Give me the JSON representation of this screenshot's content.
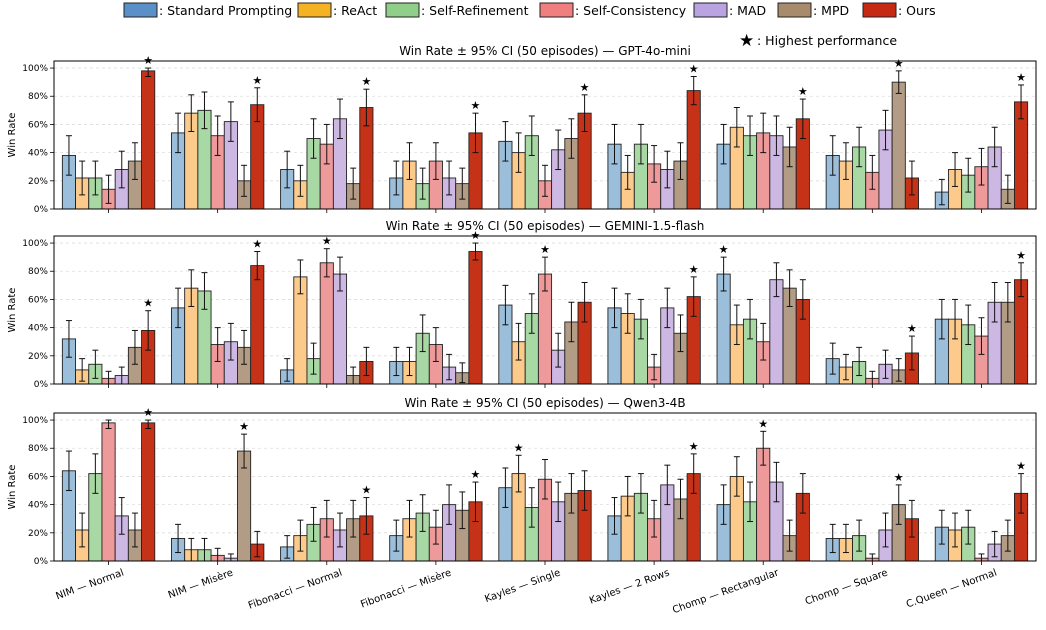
{
  "legend": {
    "series_labels": [
      ": Standard Prompting",
      ": ReAct",
      ": Self-Refinement",
      ": Self-Consistency",
      ": MAD",
      ": MPD",
      ": Ours"
    ],
    "highest_label": ": Highest performance",
    "highest_symbol": "★"
  },
  "colors": {
    "series_fill": [
      "#9bbedb",
      "#fccb8c",
      "#a8d8a3",
      "#ef9a9a",
      "#cdb8e4",
      "#b29c85",
      "#c63218"
    ],
    "series_swatch": [
      "#5b8fc7",
      "#f5b323",
      "#8fcf8a",
      "#f08080",
      "#b9a3e0",
      "#a88b6d",
      "#c62a12"
    ],
    "grid": "#dddddd"
  },
  "shared": {
    "ylabel": "Win Rate",
    "yticks": [
      "0%",
      "20%",
      "40%",
      "60%",
      "80%",
      "100%"
    ],
    "ylim": [
      0,
      105
    ]
  },
  "chart_data": [
    {
      "type": "bar",
      "title": "Win Rate ± 95% CI (50 episodes) — GPT-4o-mini",
      "ylabel": "Win Rate",
      "categories": [
        "NIM — Normal",
        "NIM — Misère",
        "Fibonacci — Normal",
        "Fibonacci — Misère",
        "Kayles — Single",
        "Kayles — 2 Rows",
        "Chomp — Rectangular",
        "Chomp — Square",
        "C.Queen — Normal"
      ],
      "series": [
        {
          "name": "Standard Prompting",
          "values": [
            38,
            54,
            28,
            22,
            48,
            46,
            46,
            38,
            12
          ],
          "err": [
            14,
            14,
            13,
            12,
            14,
            14,
            14,
            14,
            9
          ]
        },
        {
          "name": "ReAct",
          "values": [
            22,
            68,
            20,
            34,
            40,
            26,
            58,
            34,
            28
          ],
          "err": [
            12,
            13,
            11,
            13,
            14,
            12,
            14,
            13,
            12
          ]
        },
        {
          "name": "Self-Refinement",
          "values": [
            22,
            70,
            50,
            18,
            52,
            46,
            52,
            44,
            24
          ],
          "err": [
            12,
            13,
            14,
            11,
            14,
            14,
            14,
            14,
            12
          ]
        },
        {
          "name": "Self-Consistency",
          "values": [
            14,
            52,
            46,
            34,
            20,
            32,
            54,
            26,
            30
          ],
          "err": [
            10,
            14,
            14,
            13,
            11,
            13,
            14,
            12,
            13
          ]
        },
        {
          "name": "MAD",
          "values": [
            28,
            62,
            64,
            22,
            42,
            28,
            52,
            56,
            44
          ],
          "err": [
            13,
            14,
            14,
            12,
            14,
            13,
            14,
            14,
            14
          ]
        },
        {
          "name": "MPD",
          "values": [
            34,
            20,
            18,
            18,
            50,
            34,
            44,
            90,
            14
          ],
          "err": [
            13,
            11,
            11,
            11,
            14,
            13,
            14,
            8,
            10
          ]
        },
        {
          "name": "Ours",
          "values": [
            98,
            74,
            72,
            54,
            68,
            84,
            64,
            22,
            76
          ],
          "err": [
            4,
            12,
            13,
            14,
            13,
            10,
            14,
            12,
            12
          ]
        }
      ],
      "highest": [
        6,
        6,
        6,
        6,
        6,
        6,
        6,
        5,
        6
      ]
    },
    {
      "type": "bar",
      "title": "Win Rate ± 95% CI (50 episodes) — GEMINI-1.5-flash",
      "ylabel": "Win Rate",
      "categories": [
        "NIM — Normal",
        "NIM — Misère",
        "Fibonacci — Normal",
        "Fibonacci — Misère",
        "Kayles — Single",
        "Kayles — 2 Rows",
        "Chomp — Rectangular",
        "Chomp — Square",
        "C.Queen — Normal"
      ],
      "series": [
        {
          "name": "Standard Prompting",
          "values": [
            32,
            54,
            10,
            16,
            56,
            54,
            78,
            18,
            46
          ],
          "err": [
            13,
            14,
            8,
            10,
            14,
            14,
            12,
            11,
            14
          ]
        },
        {
          "name": "ReAct",
          "values": [
            10,
            68,
            76,
            16,
            30,
            50,
            42,
            12,
            46
          ],
          "err": [
            8,
            13,
            12,
            10,
            13,
            14,
            14,
            9,
            14
          ]
        },
        {
          "name": "Self-Refinement",
          "values": [
            14,
            66,
            18,
            36,
            50,
            46,
            46,
            16,
            42
          ],
          "err": [
            10,
            13,
            11,
            13,
            14,
            14,
            14,
            10,
            14
          ]
        },
        {
          "name": "Self-Consistency",
          "values": [
            4,
            28,
            86,
            28,
            78,
            12,
            30,
            4,
            34
          ],
          "err": [
            5,
            12,
            10,
            12,
            12,
            9,
            13,
            5,
            13
          ]
        },
        {
          "name": "MAD",
          "values": [
            6,
            30,
            78,
            12,
            24,
            54,
            74,
            14,
            58
          ],
          "err": [
            6,
            13,
            12,
            9,
            12,
            14,
            12,
            10,
            14
          ]
        },
        {
          "name": "MPD",
          "values": [
            26,
            26,
            6,
            8,
            44,
            36,
            68,
            10,
            58
          ],
          "err": [
            12,
            12,
            6,
            7,
            14,
            13,
            13,
            8,
            14
          ]
        },
        {
          "name": "Ours",
          "values": [
            38,
            84,
            16,
            94,
            58,
            62,
            60,
            22,
            74
          ],
          "err": [
            14,
            10,
            10,
            6,
            14,
            14,
            14,
            12,
            12
          ]
        }
      ],
      "highest": [
        6,
        6,
        3,
        6,
        3,
        6,
        0,
        6,
        6
      ]
    },
    {
      "type": "bar",
      "title": "Win Rate ± 95% CI (50 episodes) — Qwen3-4B",
      "ylabel": "Win Rate",
      "categories": [
        "NIM — Normal",
        "NIM — Misère",
        "Fibonacci — Normal",
        "Fibonacci — Misère",
        "Kayles — Single",
        "Kayles — 2 Rows",
        "Chomp — Rectangular",
        "Chomp — Square",
        "C.Queen — Normal"
      ],
      "series": [
        {
          "name": "Standard Prompting",
          "values": [
            64,
            16,
            10,
            18,
            52,
            32,
            40,
            16,
            24
          ],
          "err": [
            14,
            10,
            8,
            11,
            14,
            13,
            14,
            10,
            12
          ]
        },
        {
          "name": "ReAct",
          "values": [
            22,
            8,
            18,
            30,
            62,
            46,
            60,
            16,
            22
          ],
          "err": [
            12,
            8,
            11,
            13,
            13,
            14,
            14,
            10,
            12
          ]
        },
        {
          "name": "Self-Refinement",
          "values": [
            62,
            8,
            26,
            34,
            38,
            48,
            42,
            18,
            24
          ],
          "err": [
            14,
            8,
            12,
            13,
            14,
            14,
            14,
            11,
            12
          ]
        },
        {
          "name": "Self-Consistency",
          "values": [
            98,
            4,
            30,
            24,
            58,
            30,
            80,
            2,
            2
          ],
          "err": [
            4,
            5,
            13,
            12,
            14,
            13,
            12,
            3,
            3
          ]
        },
        {
          "name": "MAD",
          "values": [
            32,
            2,
            22,
            40,
            42,
            54,
            56,
            22,
            12
          ],
          "err": [
            13,
            3,
            12,
            14,
            14,
            14,
            14,
            12,
            9
          ]
        },
        {
          "name": "MPD",
          "values": [
            22,
            78,
            30,
            36,
            48,
            44,
            18,
            40,
            18
          ],
          "err": [
            12,
            12,
            13,
            13,
            14,
            14,
            11,
            14,
            11
          ]
        },
        {
          "name": "Ours",
          "values": [
            98,
            12,
            32,
            42,
            50,
            62,
            48,
            30,
            48
          ],
          "err": [
            4,
            9,
            13,
            14,
            14,
            14,
            14,
            13,
            14
          ]
        }
      ],
      "highest": [
        6,
        5,
        6,
        6,
        1,
        6,
        3,
        5,
        6
      ]
    }
  ]
}
